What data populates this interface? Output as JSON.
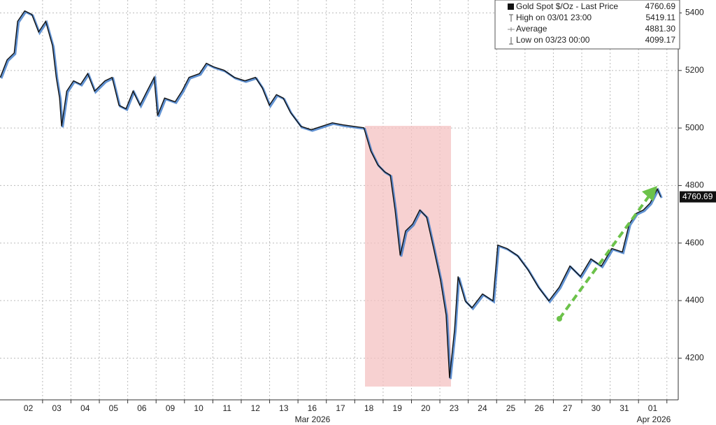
{
  "chart_data": {
    "type": "line",
    "x": [
      -0.49,
      -0.25,
      0,
      0.12,
      0.37,
      0.62,
      0.86,
      1.11,
      1.35,
      1.48,
      1.6,
      1.67,
      1.85,
      2.09,
      2.34,
      2.59,
      2.83,
      3.2,
      3.45,
      3.69,
      3.94,
      4.19,
      4.43,
      4.68,
      4.93,
      5.05,
      5.3,
      5.67,
      5.91,
      6.16,
      6.53,
      6.77,
      7.02,
      7.39,
      7.76,
      8.13,
      8.5,
      8.74,
      8.99,
      9.24,
      9.48,
      9.73,
      10.1,
      10.47,
      10.84,
      11.21,
      11.58,
      11.95,
      12.32,
      12.56,
      12.81,
      13.05,
      13.25,
      13.42,
      13.6,
      13.79,
      14.04,
      14.29,
      14.53,
      14.78,
      15.02,
      15.22,
      15.34,
      15.52,
      15.64,
      15.89,
      16.13,
      16.5,
      16.87,
      17.04,
      17.36,
      17.73,
      18.1,
      18.47,
      18.84,
      19.21,
      19.58,
      19.95,
      20.32,
      20.69,
      21.06,
      21.43,
      21.67,
      21.92,
      22.17,
      22.41,
      22.66,
      22.78
    ],
    "series": [
      {
        "name": "Gold Spot $/Oz - Last Price",
        "color": "#111111",
        "values": [
          5176,
          5237,
          5261,
          5371,
          5407,
          5395,
          5334,
          5371,
          5286,
          5176,
          5104,
          5006,
          5128,
          5164,
          5152,
          5189,
          5128,
          5164,
          5176,
          5079,
          5067,
          5128,
          5079,
          5128,
          5176,
          5043,
          5104,
          5091,
          5128,
          5176,
          5189,
          5225,
          5213,
          5201,
          5176,
          5164,
          5176,
          5140,
          5079,
          5116,
          5104,
          5055,
          5006,
          4994,
          5006,
          5018,
          5011,
          5006,
          5001,
          4921,
          4872,
          4848,
          4836,
          4715,
          4557,
          4642,
          4666,
          4715,
          4691,
          4581,
          4472,
          4350,
          4131,
          4302,
          4484,
          4399,
          4375,
          4423,
          4399,
          4593,
          4581,
          4557,
          4508,
          4447,
          4399,
          4447,
          4520,
          4484,
          4545,
          4520,
          4581,
          4569,
          4666,
          4703,
          4715,
          4739,
          4788,
          4760.69
        ]
      }
    ],
    "xlim": [
      -0.5,
      23.4
    ],
    "xticks": [
      {
        "value": 0.5,
        "label": "02"
      },
      {
        "value": 1.5,
        "label": "03"
      },
      {
        "value": 2.5,
        "label": "04"
      },
      {
        "value": 3.5,
        "label": "05"
      },
      {
        "value": 4.5,
        "label": "06"
      },
      {
        "value": 5.5,
        "label": "09"
      },
      {
        "value": 6.5,
        "label": "10"
      },
      {
        "value": 7.5,
        "label": "11"
      },
      {
        "value": 8.5,
        "label": "12"
      },
      {
        "value": 9.5,
        "label": "13"
      },
      {
        "value": 10.5,
        "label": "16"
      },
      {
        "value": 11.5,
        "label": "17"
      },
      {
        "value": 12.5,
        "label": "18"
      },
      {
        "value": 13.5,
        "label": "19"
      },
      {
        "value": 14.5,
        "label": "20"
      },
      {
        "value": 15.5,
        "label": "23"
      },
      {
        "value": 16.5,
        "label": "24"
      },
      {
        "value": 17.5,
        "label": "25"
      },
      {
        "value": 18.5,
        "label": "26"
      },
      {
        "value": 19.5,
        "label": "27"
      },
      {
        "value": 20.5,
        "label": "30"
      },
      {
        "value": 21.5,
        "label": "31"
      },
      {
        "value": 22.5,
        "label": "01"
      }
    ],
    "month_labels": [
      "Mar 2026",
      "Apr 2026"
    ],
    "ylim": [
      4055,
      5445
    ],
    "yticks": [
      4200,
      4400,
      4600,
      4800,
      5000,
      5200,
      5400
    ],
    "grid": true,
    "legend": [
      {
        "label": "Gold Spot $/Oz - Last Price",
        "value": 4760.69
      },
      {
        "label": "High on 03/01 23:00",
        "value": 5419.11
      },
      {
        "label": "Average",
        "value": 4881.3,
        "value_label": "4881.30"
      },
      {
        "label": "Low on 03/23 00:00",
        "value": 4099.17
      }
    ]
  }
}
